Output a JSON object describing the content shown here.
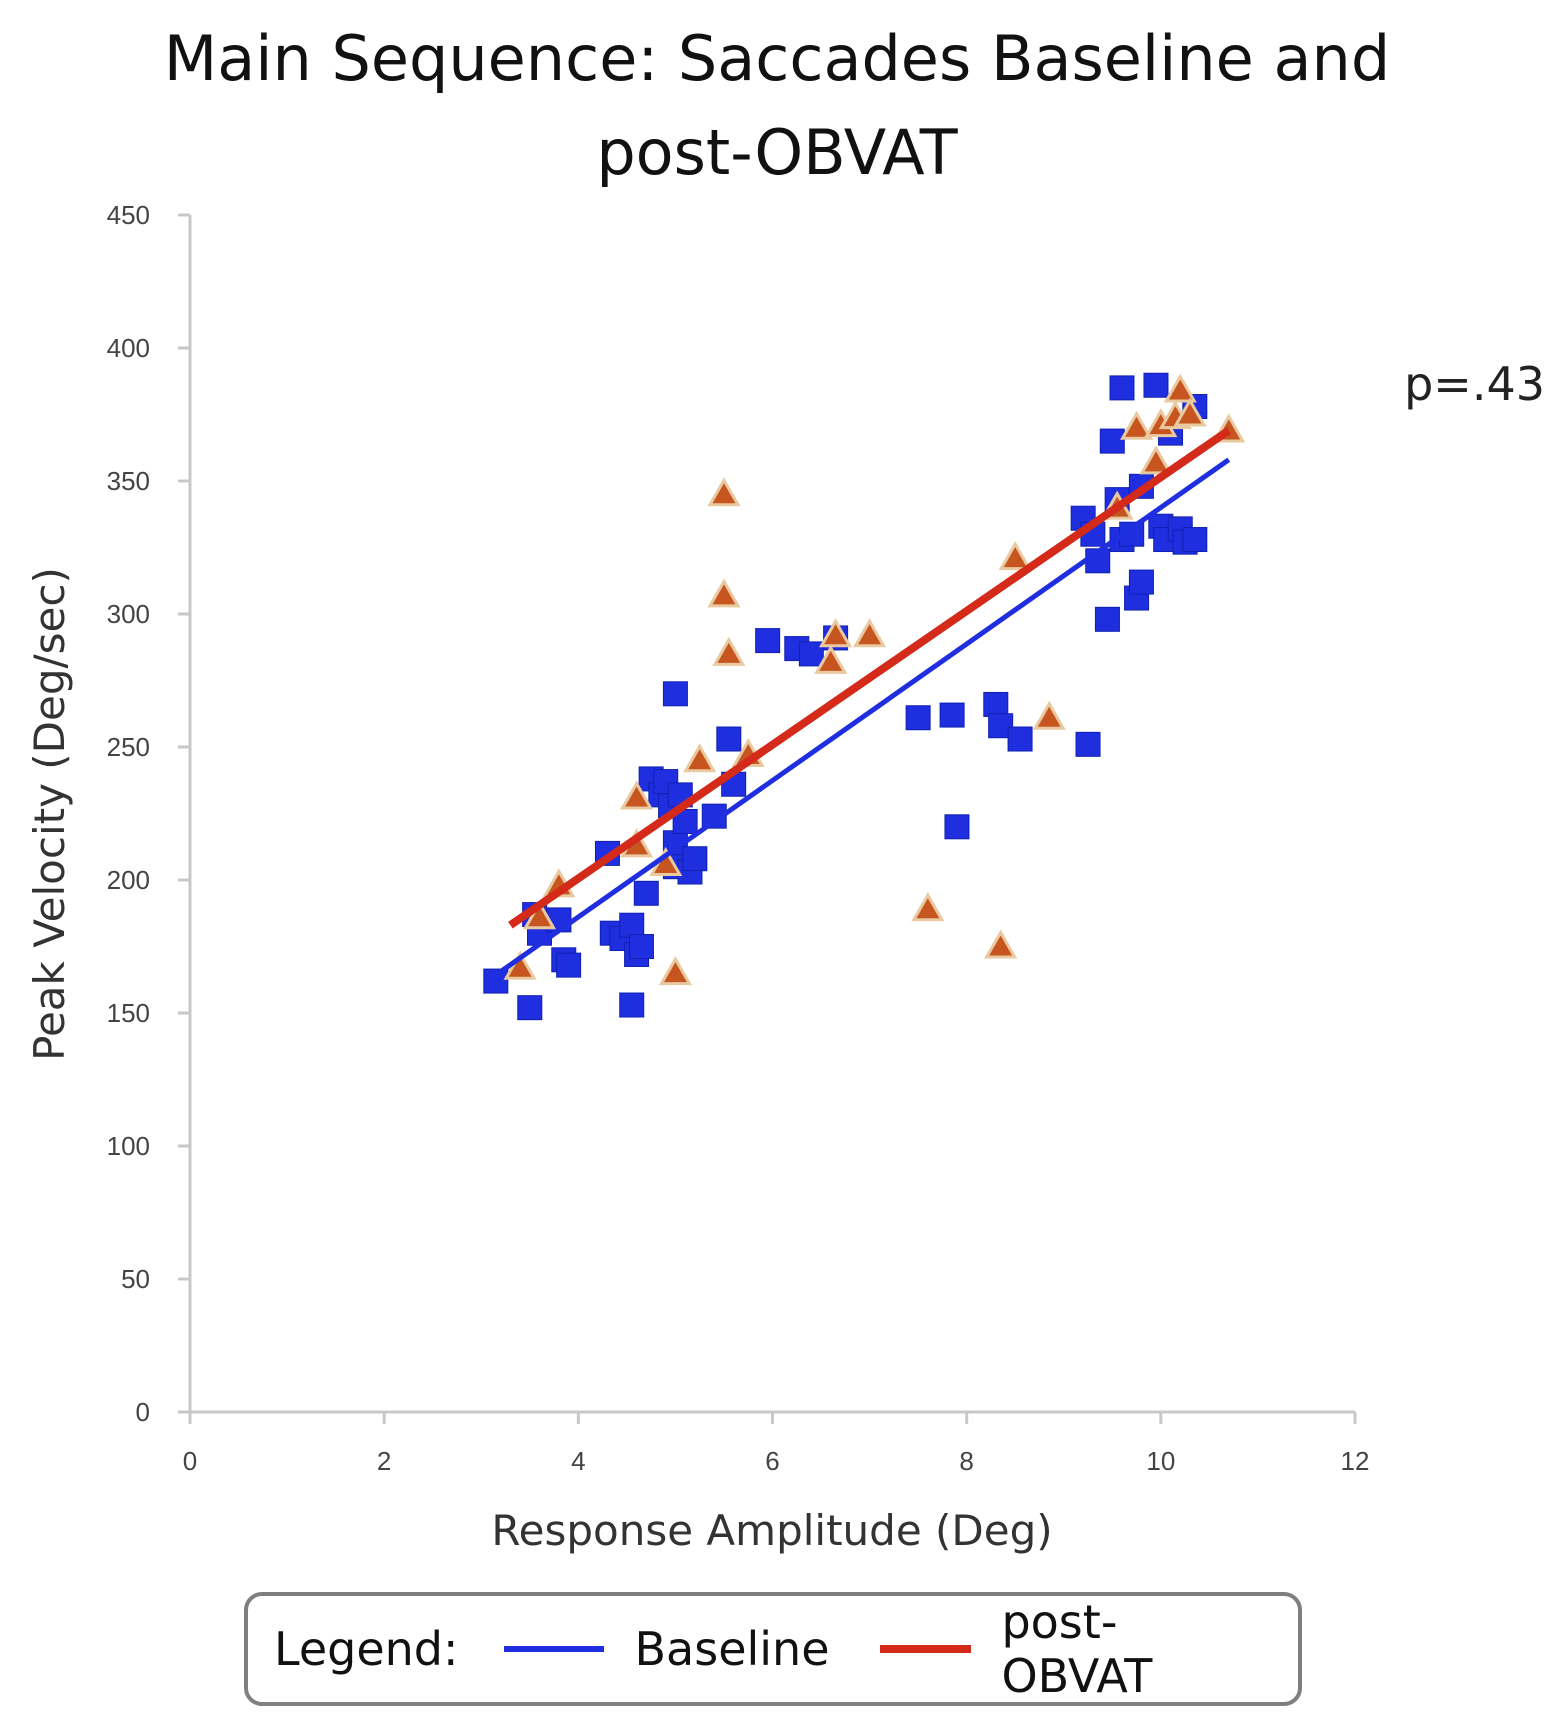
{
  "chart_data": {
    "type": "scatter",
    "title_lines": [
      "Main Sequence: Saccades Baseline and",
      "post-OBVAT"
    ],
    "xlabel": "Response Amplitude (Deg)",
    "ylabel": "Peak Velocity (Deg/sec)",
    "xlim": [
      0,
      12
    ],
    "ylim": [
      0,
      450
    ],
    "x_ticks": [
      0,
      2,
      4,
      6,
      8,
      10,
      12
    ],
    "y_ticks": [
      0,
      50,
      100,
      150,
      200,
      250,
      300,
      350,
      400,
      450
    ],
    "grid": false,
    "annotation": "p=.43",
    "series": [
      {
        "name": "Baseline",
        "color": "#1f2fe0",
        "marker": "square",
        "points": [
          [
            3.15,
            162
          ],
          [
            3.5,
            152
          ],
          [
            3.55,
            187
          ],
          [
            3.6,
            180
          ],
          [
            3.8,
            185
          ],
          [
            3.85,
            170
          ],
          [
            3.9,
            168
          ],
          [
            4.3,
            210
          ],
          [
            4.35,
            180
          ],
          [
            4.45,
            178
          ],
          [
            4.55,
            183
          ],
          [
            4.55,
            153
          ],
          [
            4.6,
            172
          ],
          [
            4.65,
            175
          ],
          [
            4.7,
            195
          ],
          [
            4.75,
            238
          ],
          [
            4.85,
            232
          ],
          [
            4.9,
            237
          ],
          [
            4.95,
            228
          ],
          [
            5.0,
            205
          ],
          [
            5.0,
            214
          ],
          [
            5.0,
            270
          ],
          [
            5.05,
            232
          ],
          [
            5.1,
            222
          ],
          [
            5.15,
            203
          ],
          [
            5.2,
            208
          ],
          [
            5.4,
            224
          ],
          [
            5.55,
            253
          ],
          [
            5.6,
            236
          ],
          [
            5.95,
            290
          ],
          [
            6.25,
            287
          ],
          [
            6.4,
            285
          ],
          [
            6.65,
            291
          ],
          [
            7.5,
            261
          ],
          [
            7.85,
            262
          ],
          [
            7.9,
            220
          ],
          [
            8.3,
            266
          ],
          [
            8.35,
            258
          ],
          [
            8.55,
            253
          ],
          [
            9.25,
            251
          ],
          [
            9.2,
            336
          ],
          [
            9.3,
            330
          ],
          [
            9.35,
            320
          ],
          [
            9.45,
            298
          ],
          [
            9.5,
            365
          ],
          [
            9.55,
            343
          ],
          [
            9.6,
            385
          ],
          [
            9.6,
            328
          ],
          [
            9.7,
            330
          ],
          [
            9.75,
            306
          ],
          [
            9.8,
            312
          ],
          [
            9.8,
            348
          ],
          [
            9.95,
            386
          ],
          [
            10.0,
            333
          ],
          [
            10.05,
            328
          ],
          [
            10.1,
            368
          ],
          [
            10.2,
            332
          ],
          [
            10.25,
            327
          ],
          [
            10.35,
            378
          ],
          [
            10.35,
            328
          ]
        ],
        "fit": {
          "x": [
            3.1,
            10.7
          ],
          "y": [
            163,
            358
          ]
        }
      },
      {
        "name": "post-OBVAT",
        "color": "#d42a1a",
        "marker": "triangle",
        "points": [
          [
            3.4,
            167
          ],
          [
            3.6,
            186
          ],
          [
            3.8,
            198
          ],
          [
            4.6,
            231
          ],
          [
            4.6,
            213
          ],
          [
            4.9,
            206
          ],
          [
            5.0,
            165
          ],
          [
            5.25,
            245
          ],
          [
            5.5,
            345
          ],
          [
            5.5,
            307
          ],
          [
            5.55,
            285
          ],
          [
            5.75,
            247
          ],
          [
            6.6,
            282
          ],
          [
            6.65,
            292
          ],
          [
            7.0,
            292
          ],
          [
            7.6,
            189
          ],
          [
            8.35,
            175
          ],
          [
            8.5,
            321
          ],
          [
            8.85,
            261
          ],
          [
            9.55,
            340
          ],
          [
            9.75,
            370
          ],
          [
            9.95,
            357
          ],
          [
            10.0,
            371
          ],
          [
            10.15,
            374
          ],
          [
            10.2,
            384
          ],
          [
            10.3,
            375
          ],
          [
            10.7,
            369
          ]
        ],
        "fit": {
          "x": [
            3.3,
            10.7
          ],
          "y": [
            183,
            369
          ]
        }
      }
    ]
  },
  "legend": {
    "label": "Legend:",
    "baseline_name": "Baseline",
    "post_name": "post-OBVAT",
    "baseline_color": "#1f2fe0",
    "post_color": "#d42a1a"
  }
}
